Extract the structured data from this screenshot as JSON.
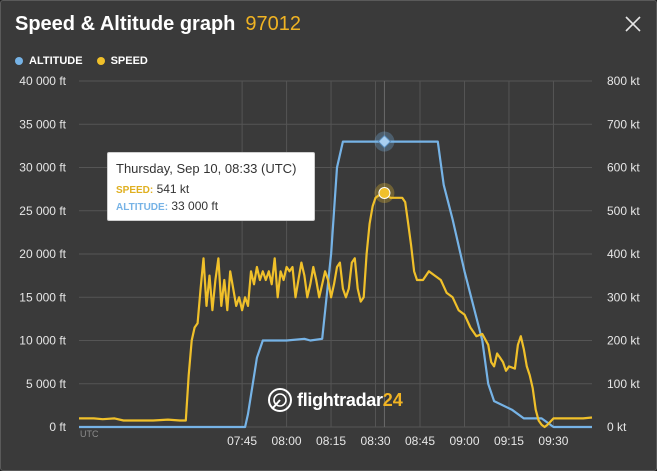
{
  "header": {
    "title": "Speed & Altitude graph",
    "flight_id": "97012",
    "close_icon": "close-icon"
  },
  "legend": {
    "altitude_label": "ALTITUDE",
    "speed_label": "SPEED",
    "altitude_color": "#76b3e6",
    "speed_color": "#f0c02a"
  },
  "tooltip": {
    "date": "Thursday, Sep 10, 08:33 (UTC)",
    "speed_label": "SPEED:",
    "speed_value": "541 kt",
    "altitude_label": "ALTITUDE:",
    "altitude_value": "33 000 ft"
  },
  "watermark": {
    "brand": "flightradar",
    "brand_num": "24"
  },
  "chart_data": {
    "type": "line",
    "x_unit_label": "UTC",
    "x_ticks": [
      "07:45",
      "08:00",
      "08:15",
      "08:30",
      "08:45",
      "09:00",
      "09:15",
      "09:30"
    ],
    "left_axis_ticks": [
      "0 ft",
      "5 000 ft",
      "10 000 ft",
      "15 000 ft",
      "20 000 ft",
      "25 000 ft",
      "30 000 ft",
      "35 000 ft",
      "40 000 ft"
    ],
    "right_axis_ticks": [
      "0 kt",
      "100 kt",
      "200 kt",
      "300 kt",
      "400 kt",
      "500 kt",
      "600 kt",
      "700 kt",
      "800 kt"
    ],
    "x_range_minutes": [
      410,
      583
    ],
    "y_left_range": [
      0,
      40000
    ],
    "y_right_range": [
      0,
      800
    ],
    "grid": true,
    "highlight": {
      "time_min": 513,
      "altitude_ft": 33000,
      "speed_kt": 541
    },
    "series": [
      {
        "name": "ALTITUDE",
        "axis": "left",
        "color": "#76b3e6",
        "points": [
          [
            410,
            0
          ],
          [
            466,
            0
          ],
          [
            467,
            1500
          ],
          [
            470,
            8000
          ],
          [
            472,
            10000
          ],
          [
            474,
            10000
          ],
          [
            480,
            10000
          ],
          [
            486,
            10200
          ],
          [
            488,
            10000
          ],
          [
            492,
            10200
          ],
          [
            495,
            20000
          ],
          [
            497,
            30000
          ],
          [
            499,
            33000
          ],
          [
            500,
            33000
          ],
          [
            528,
            33000
          ],
          [
            531,
            33000
          ],
          [
            533,
            28000
          ],
          [
            536,
            24000
          ],
          [
            540,
            18000
          ],
          [
            546,
            10000
          ],
          [
            548,
            5000
          ],
          [
            550,
            3000
          ],
          [
            556,
            2000
          ],
          [
            560,
            1000
          ],
          [
            566,
            1000
          ],
          [
            570,
            0
          ],
          [
            583,
            0
          ]
        ]
      },
      {
        "name": "SPEED",
        "axis": "right",
        "color": "#f0c02a",
        "points": [
          [
            410,
            20
          ],
          [
            415,
            20
          ],
          [
            418,
            18
          ],
          [
            422,
            20
          ],
          [
            425,
            15
          ],
          [
            430,
            15
          ],
          [
            435,
            15
          ],
          [
            440,
            17
          ],
          [
            444,
            15
          ],
          [
            446,
            15
          ],
          [
            447,
            120
          ],
          [
            448,
            200
          ],
          [
            449,
            230
          ],
          [
            450,
            240
          ],
          [
            451,
            320
          ],
          [
            452,
            390
          ],
          [
            453,
            280
          ],
          [
            454,
            350
          ],
          [
            455,
            270
          ],
          [
            456,
            340
          ],
          [
            457,
            390
          ],
          [
            458,
            280
          ],
          [
            459,
            340
          ],
          [
            460,
            270
          ],
          [
            461,
            360
          ],
          [
            462,
            320
          ],
          [
            463,
            280
          ],
          [
            464,
            300
          ],
          [
            465,
            270
          ],
          [
            466,
            300
          ],
          [
            467,
            280
          ],
          [
            468,
            360
          ],
          [
            469,
            330
          ],
          [
            470,
            370
          ],
          [
            471,
            340
          ],
          [
            472,
            360
          ],
          [
            473,
            340
          ],
          [
            474,
            360
          ],
          [
            475,
            330
          ],
          [
            476,
            390
          ],
          [
            477,
            300
          ],
          [
            478,
            360
          ],
          [
            479,
            340
          ],
          [
            480,
            370
          ],
          [
            481,
            360
          ],
          [
            482,
            370
          ],
          [
            483,
            300
          ],
          [
            484,
            340
          ],
          [
            485,
            380
          ],
          [
            486,
            350
          ],
          [
            487,
            300
          ],
          [
            488,
            330
          ],
          [
            489,
            370
          ],
          [
            490,
            340
          ],
          [
            491,
            300
          ],
          [
            492,
            330
          ],
          [
            493,
            360
          ],
          [
            494,
            340
          ],
          [
            495,
            300
          ],
          [
            496,
            330
          ],
          [
            497,
            370
          ],
          [
            498,
            380
          ],
          [
            499,
            320
          ],
          [
            500,
            300
          ],
          [
            501,
            320
          ],
          [
            502,
            380
          ],
          [
            503,
            390
          ],
          [
            504,
            320
          ],
          [
            505,
            290
          ],
          [
            506,
            300
          ],
          [
            507,
            400
          ],
          [
            508,
            470
          ],
          [
            509,
            510
          ],
          [
            510,
            530
          ],
          [
            512,
            540
          ],
          [
            513,
            541
          ],
          [
            515,
            530
          ],
          [
            517,
            530
          ],
          [
            519,
            530
          ],
          [
            520,
            520
          ],
          [
            521,
            470
          ],
          [
            522,
            420
          ],
          [
            523,
            360
          ],
          [
            524,
            340
          ],
          [
            526,
            340
          ],
          [
            528,
            360
          ],
          [
            530,
            350
          ],
          [
            532,
            340
          ],
          [
            534,
            310
          ],
          [
            536,
            300
          ],
          [
            538,
            270
          ],
          [
            540,
            260
          ],
          [
            542,
            230
          ],
          [
            544,
            210
          ],
          [
            546,
            215
          ],
          [
            548,
            190
          ],
          [
            549,
            150
          ],
          [
            550,
            140
          ],
          [
            551,
            170
          ],
          [
            552,
            160
          ],
          [
            553,
            150
          ],
          [
            554,
            130
          ],
          [
            555,
            140
          ],
          [
            557,
            135
          ],
          [
            558,
            190
          ],
          [
            559,
            210
          ],
          [
            560,
            180
          ],
          [
            561,
            140
          ],
          [
            562,
            120
          ],
          [
            563,
            90
          ],
          [
            564,
            40
          ],
          [
            565,
            15
          ],
          [
            566,
            5
          ],
          [
            567,
            0
          ],
          [
            568,
            5
          ],
          [
            570,
            20
          ],
          [
            575,
            20
          ],
          [
            580,
            20
          ],
          [
            583,
            22
          ]
        ]
      }
    ]
  }
}
